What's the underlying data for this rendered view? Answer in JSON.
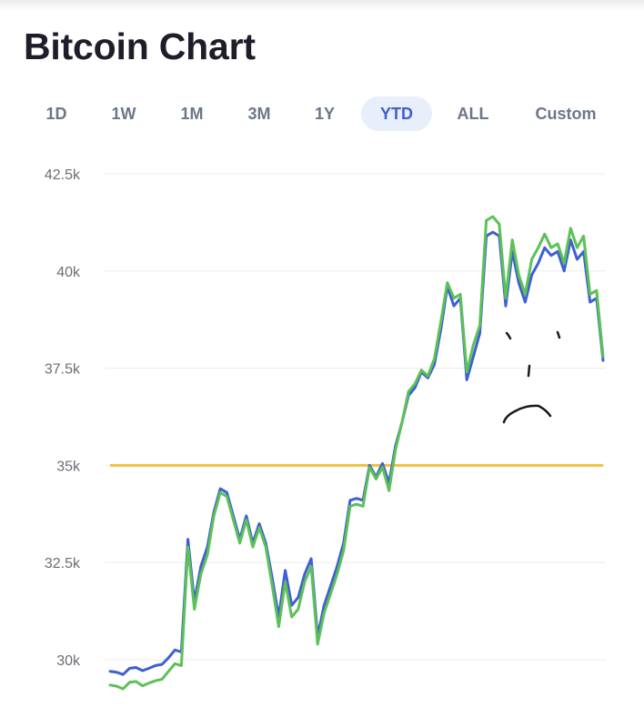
{
  "title": "Bitcoin Chart",
  "ranges": [
    {
      "label": "1D",
      "active": false
    },
    {
      "label": "1W",
      "active": false
    },
    {
      "label": "1M",
      "active": false
    },
    {
      "label": "3M",
      "active": false
    },
    {
      "label": "1Y",
      "active": false
    },
    {
      "label": "YTD",
      "active": true
    },
    {
      "label": "ALL",
      "active": false
    },
    {
      "label": "Custom",
      "active": false
    }
  ],
  "colors": {
    "series_blue": "#3f5fd2",
    "series_green": "#5cc157",
    "reference_line": "#f0c040",
    "active_tab_bg": "#e8eefa",
    "annotation": "#1a1a1a"
  },
  "chart_data": {
    "type": "line",
    "ylim": [
      29700,
      43300
    ],
    "yticks": [
      30000,
      32500,
      35000,
      37500,
      40000,
      42500
    ],
    "ytick_labels": [
      "30k",
      "32.5k",
      "35k",
      "37.5k",
      "40k",
      "42.5k"
    ],
    "grid": true,
    "legend": false,
    "reference_line": 35000,
    "series": [
      {
        "values": [
          29700,
          29680,
          29620,
          29780,
          29800,
          29720,
          29780,
          29850,
          29880,
          30050,
          30250,
          30200,
          33100,
          31500,
          32400,
          32900,
          33800,
          34400,
          34300,
          33700,
          33100,
          33700,
          33000,
          33500,
          33000,
          32100,
          31100,
          32300,
          31400,
          31600,
          32200,
          32600,
          30600,
          31400,
          31900,
          32400,
          33000,
          34100,
          34150,
          34100,
          35000,
          34700,
          35050,
          34550,
          35500,
          36100,
          36800,
          37000,
          37400,
          37250,
          37600,
          38500,
          39600,
          39100,
          39300,
          37200,
          37800,
          38400,
          40900,
          41000,
          40900,
          39100,
          40500,
          39700,
          39200,
          39900,
          40200,
          40600,
          40400,
          40500,
          40000,
          40800,
          40300,
          40500,
          39200,
          39300,
          37700
        ]
      },
      {
        "values": [
          29350,
          29320,
          29250,
          29420,
          29440,
          29330,
          29400,
          29460,
          29500,
          29700,
          29900,
          29850,
          32900,
          31300,
          32200,
          32700,
          33700,
          34300,
          34200,
          33600,
          33000,
          33600,
          32900,
          33400,
          32900,
          31900,
          30850,
          32000,
          31100,
          31300,
          32000,
          32400,
          30400,
          31200,
          31700,
          32200,
          32800,
          33950,
          34000,
          33950,
          34950,
          34650,
          34950,
          34350,
          35400,
          36100,
          36900,
          37100,
          37450,
          37300,
          37750,
          38700,
          39700,
          39300,
          39400,
          37400,
          38100,
          38600,
          41300,
          41400,
          41200,
          39300,
          40800,
          39900,
          39400,
          40300,
          40600,
          40950,
          40600,
          40700,
          40200,
          41100,
          40600,
          40900,
          39400,
          39500,
          37800
        ]
      }
    ]
  }
}
